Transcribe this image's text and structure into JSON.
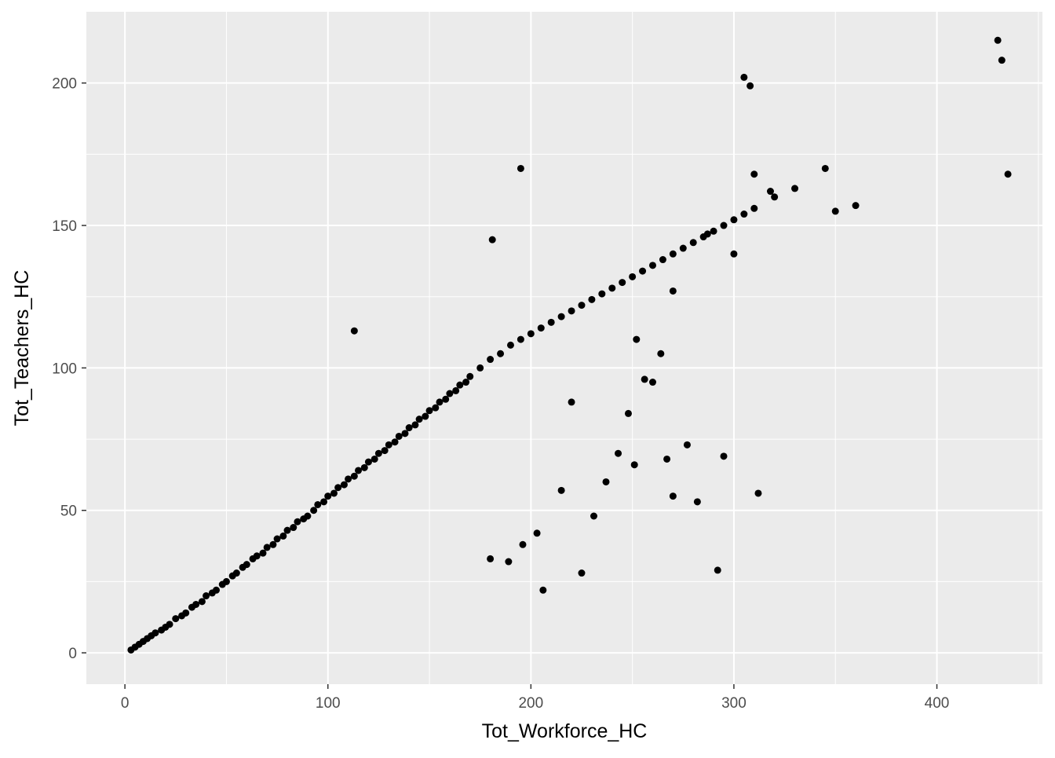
{
  "chart_data": {
    "type": "scatter",
    "title": "",
    "xlabel": "Tot_Workforce_HC",
    "ylabel": "Tot_Teachers_HC",
    "xlim": [
      -19,
      452
    ],
    "ylim": [
      -11,
      225
    ],
    "x_ticks": [
      0,
      100,
      200,
      300,
      400
    ],
    "y_ticks": [
      0,
      50,
      100,
      150,
      200
    ],
    "x_tick_labels": [
      "0",
      "100",
      "200",
      "300",
      "400"
    ],
    "y_tick_labels": [
      "0",
      "50",
      "100",
      "150",
      "200"
    ],
    "grid": true,
    "legend": "none",
    "colors": {
      "panel_background": "#EBEBEB",
      "grid": "#FFFFFF",
      "points": "#000000",
      "tick_labels": "#4D4D4D"
    },
    "series": [
      {
        "x": [
          3,
          5,
          7,
          9,
          11,
          13,
          15,
          18,
          20,
          22,
          25,
          28,
          30,
          33,
          35,
          38,
          40,
          43,
          45,
          48,
          50,
          53,
          55,
          58,
          60,
          63,
          65,
          68,
          70,
          73,
          75,
          78,
          80,
          83,
          85,
          88,
          90,
          93,
          95,
          98,
          100,
          103,
          105,
          108,
          110,
          113,
          115,
          118,
          120,
          123,
          125,
          128,
          130,
          133,
          135,
          138,
          140,
          143,
          145,
          148,
          150,
          153,
          155,
          158,
          160,
          163,
          165,
          168,
          170,
          175,
          180,
          185,
          190,
          195,
          200,
          205,
          210,
          215,
          220,
          225,
          230,
          235,
          240,
          245,
          250,
          255,
          260,
          265,
          270,
          275,
          280,
          285,
          290,
          295,
          300,
          305,
          310,
          320,
          330,
          345,
          350,
          360,
          430,
          432,
          435,
          113,
          195,
          181,
          305,
          308,
          310,
          312,
          295,
          292,
          270,
          282,
          267,
          277,
          251,
          243,
          225,
          206,
          180,
          260,
          264,
          248,
          256,
          220,
          215,
          203,
          196,
          189,
          231,
          237,
          252,
          270,
          287,
          300,
          318
        ],
        "y": [
          1,
          2,
          3,
          4,
          5,
          6,
          7,
          8,
          9,
          10,
          12,
          13,
          14,
          16,
          17,
          18,
          20,
          21,
          22,
          24,
          25,
          27,
          28,
          30,
          31,
          33,
          34,
          35,
          37,
          38,
          40,
          41,
          43,
          44,
          46,
          47,
          48,
          50,
          52,
          53,
          55,
          56,
          58,
          59,
          61,
          62,
          64,
          65,
          67,
          68,
          70,
          71,
          73,
          74,
          76,
          77,
          79,
          80,
          82,
          83,
          85,
          86,
          88,
          89,
          91,
          92,
          94,
          95,
          97,
          100,
          103,
          105,
          108,
          110,
          112,
          114,
          116,
          118,
          120,
          122,
          124,
          126,
          128,
          130,
          132,
          134,
          136,
          138,
          140,
          142,
          144,
          146,
          148,
          150,
          152,
          154,
          156,
          160,
          163,
          170,
          155,
          157,
          215,
          208,
          168,
          113,
          170,
          145,
          202,
          199,
          168,
          56,
          69,
          29,
          55,
          53,
          68,
          73,
          66,
          70,
          28,
          22,
          33,
          95,
          105,
          84,
          96,
          88,
          57,
          42,
          38,
          32,
          48,
          60,
          110,
          127,
          147,
          140,
          162
        ]
      }
    ]
  }
}
